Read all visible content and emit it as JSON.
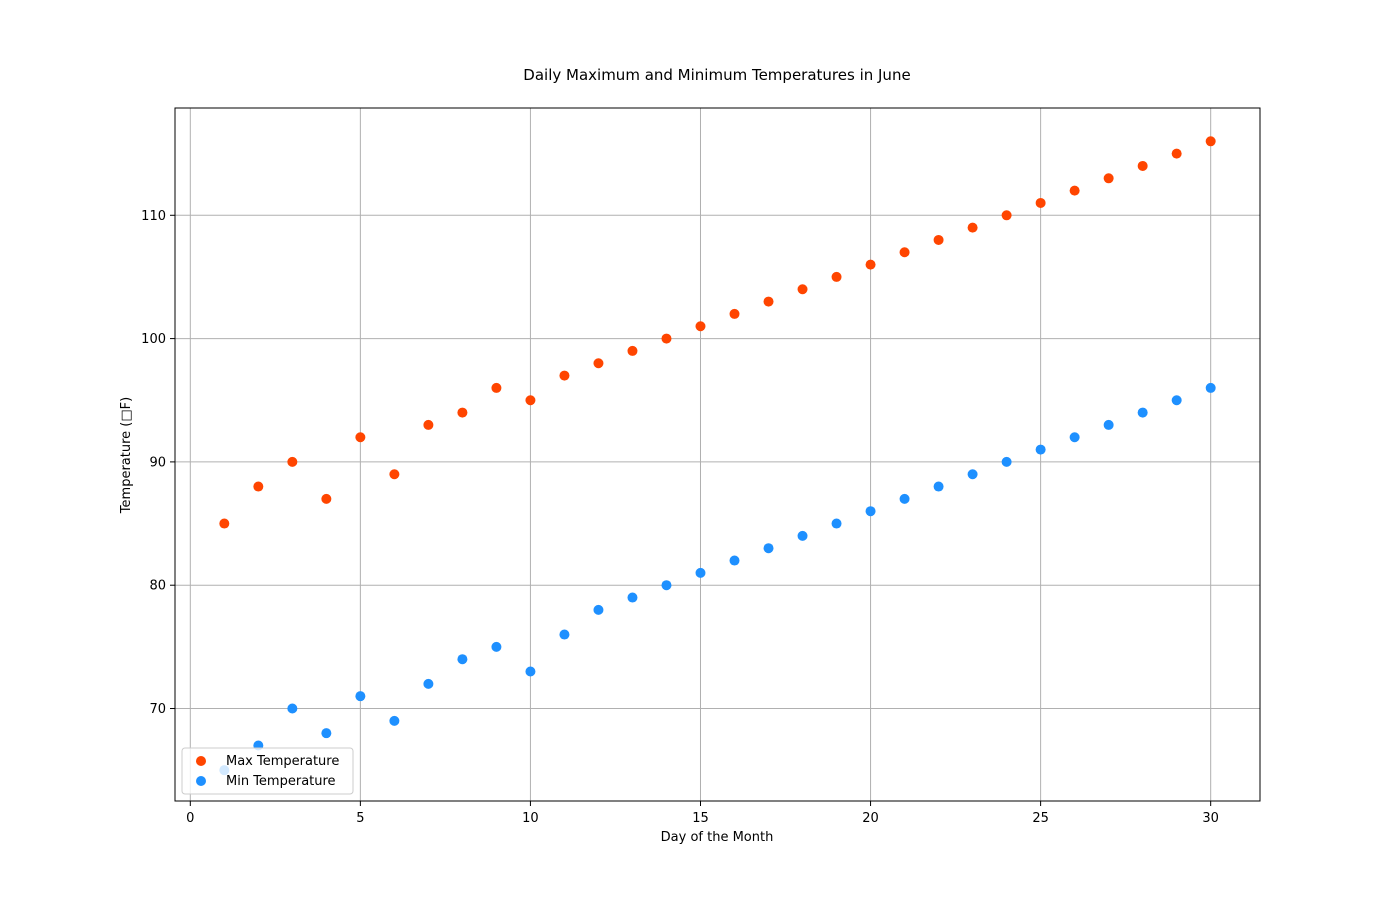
{
  "chart_data": {
    "type": "scatter",
    "title": "Daily Maximum and Minimum Temperatures in June",
    "xlabel": "Day of the Month",
    "ylabel": "Temperature (□F)",
    "xlim": [
      -0.45,
      31.45
    ],
    "ylim": [
      62.5,
      118.7
    ],
    "xticks": [
      0,
      5,
      10,
      15,
      20,
      25,
      30
    ],
    "yticks": [
      70,
      80,
      90,
      100,
      110
    ],
    "grid": true,
    "legend_position": "lower-left",
    "x": [
      1,
      2,
      3,
      4,
      5,
      6,
      7,
      8,
      9,
      10,
      11,
      12,
      13,
      14,
      15,
      16,
      17,
      18,
      19,
      20,
      21,
      22,
      23,
      24,
      25,
      26,
      27,
      28,
      29,
      30
    ],
    "series": [
      {
        "name": "Max Temperature",
        "color": "#ff4500",
        "values": [
          85,
          88,
          90,
          87,
          92,
          89,
          93,
          94,
          96,
          95,
          97,
          98,
          99,
          100,
          101,
          102,
          103,
          104,
          105,
          106,
          107,
          108,
          109,
          110,
          111,
          112,
          113,
          114,
          115,
          116
        ]
      },
      {
        "name": "Min Temperature",
        "color": "#1e90ff",
        "values": [
          65,
          67,
          70,
          68,
          71,
          69,
          72,
          74,
          75,
          73,
          76,
          78,
          79,
          80,
          81,
          82,
          83,
          84,
          85,
          86,
          87,
          88,
          89,
          90,
          91,
          92,
          93,
          94,
          95,
          96
        ]
      }
    ]
  }
}
